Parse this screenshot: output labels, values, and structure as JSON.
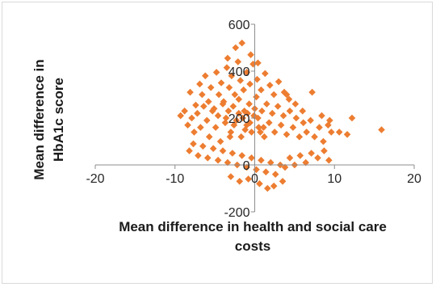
{
  "chart_data": {
    "type": "scatter",
    "title": "",
    "xlabel_lines": [
      "Mean difference in health and social care",
      "costs"
    ],
    "ylabel_lines": [
      "Mean difference in",
      "HbA1c score"
    ],
    "xlim": [
      -20,
      20
    ],
    "ylim": [
      -200,
      600
    ],
    "xticks": [
      -20,
      -10,
      0,
      10,
      20
    ],
    "yticks": [
      -200,
      0,
      200,
      400,
      600
    ],
    "gridlines": false,
    "marker": "diamond",
    "color": "#ed7d31",
    "points": [
      {
        "x": -8.1,
        "y": 310
      },
      {
        "x": -7.4,
        "y": 255
      },
      {
        "x": -6.9,
        "y": 345
      },
      {
        "x": -6.6,
        "y": 300
      },
      {
        "x": -6.2,
        "y": 380
      },
      {
        "x": -5.8,
        "y": 270
      },
      {
        "x": -5.5,
        "y": 330
      },
      {
        "x": -5.1,
        "y": 240
      },
      {
        "x": -4.8,
        "y": 395
      },
      {
        "x": -4.5,
        "y": 300
      },
      {
        "x": -4.2,
        "y": 350
      },
      {
        "x": -3.9,
        "y": 270
      },
      {
        "x": -3.5,
        "y": 415
      },
      {
        "x": -3.2,
        "y": 330
      },
      {
        "x": -2.9,
        "y": 380
      },
      {
        "x": -2.5,
        "y": 300
      },
      {
        "x": -2.1,
        "y": 440
      },
      {
        "x": -1.8,
        "y": 360
      },
      {
        "x": -1.4,
        "y": 320
      },
      {
        "x": -1.0,
        "y": 395
      },
      {
        "x": -0.6,
        "y": 345
      },
      {
        "x": -0.2,
        "y": 430
      },
      {
        "x": 0.3,
        "y": 365
      },
      {
        "x": 0.8,
        "y": 320
      },
      {
        "x": 1.3,
        "y": 390
      },
      {
        "x": 1.9,
        "y": 340
      },
      {
        "x": 2.4,
        "y": 300
      },
      {
        "x": 3.0,
        "y": 355
      },
      {
        "x": 3.7,
        "y": 310
      },
      {
        "x": 4.3,
        "y": 280
      },
      {
        "x": 5.1,
        "y": 260
      },
      {
        "x": 6.0,
        "y": 230
      },
      {
        "x": -9.3,
        "y": 210
      },
      {
        "x": -8.8,
        "y": 230
      },
      {
        "x": -8.4,
        "y": 170
      },
      {
        "x": -7.9,
        "y": 200
      },
      {
        "x": -7.6,
        "y": 140
      },
      {
        "x": -7.2,
        "y": 220
      },
      {
        "x": -6.8,
        "y": 160
      },
      {
        "x": -6.4,
        "y": 250
      },
      {
        "x": -6.0,
        "y": 190
      },
      {
        "x": -5.7,
        "y": 120
      },
      {
        "x": -5.3,
        "y": 230
      },
      {
        "x": -4.9,
        "y": 160
      },
      {
        "x": -4.6,
        "y": 210
      },
      {
        "x": -4.3,
        "y": 100
      },
      {
        "x": -4.0,
        "y": 260
      },
      {
        "x": -3.7,
        "y": 180
      },
      {
        "x": -3.3,
        "y": 230
      },
      {
        "x": -3.0,
        "y": 140
      },
      {
        "x": -2.7,
        "y": 250
      },
      {
        "x": -2.3,
        "y": 190
      },
      {
        "x": -2.0,
        "y": 280
      },
      {
        "x": -1.7,
        "y": 120
      },
      {
        "x": -1.3,
        "y": 230
      },
      {
        "x": -1.0,
        "y": 170
      },
      {
        "x": -0.7,
        "y": 260
      },
      {
        "x": -0.4,
        "y": 140
      },
      {
        "x": -0.1,
        "y": 210
      },
      {
        "x": 0.2,
        "y": 290
      },
      {
        "x": 0.5,
        "y": 160
      },
      {
        "x": 0.9,
        "y": 230
      },
      {
        "x": 1.2,
        "y": 120
      },
      {
        "x": 1.5,
        "y": 260
      },
      {
        "x": 1.8,
        "y": 180
      },
      {
        "x": 2.2,
        "y": 220
      },
      {
        "x": 2.5,
        "y": 140
      },
      {
        "x": 2.9,
        "y": 250
      },
      {
        "x": 3.3,
        "y": 170
      },
      {
        "x": 3.6,
        "y": 210
      },
      {
        "x": 4.0,
        "y": 130
      },
      {
        "x": 4.4,
        "y": 230
      },
      {
        "x": 4.8,
        "y": 160
      },
      {
        "x": 5.2,
        "y": 200
      },
      {
        "x": 5.6,
        "y": 120
      },
      {
        "x": 6.1,
        "y": 180
      },
      {
        "x": 6.5,
        "y": 140
      },
      {
        "x": 7.0,
        "y": 190
      },
      {
        "x": 7.5,
        "y": 120
      },
      {
        "x": 8.1,
        "y": 160
      },
      {
        "x": 8.6,
        "y": 100
      },
      {
        "x": 9.2,
        "y": 170
      },
      {
        "x": 9.4,
        "y": 190
      },
      {
        "x": 9.6,
        "y": 140
      },
      {
        "x": -8.2,
        "y": 60
      },
      {
        "x": -7.7,
        "y": 90
      },
      {
        "x": -7.1,
        "y": 40
      },
      {
        "x": -6.5,
        "y": 80
      },
      {
        "x": -5.9,
        "y": 30
      },
      {
        "x": -5.2,
        "y": 70
      },
      {
        "x": -4.6,
        "y": 20
      },
      {
        "x": -4.0,
        "y": 60
      },
      {
        "x": -3.4,
        "y": 10
      },
      {
        "x": -2.8,
        "y": 50
      },
      {
        "x": -2.2,
        "y": 0
      },
      {
        "x": -1.6,
        "y": 40
      },
      {
        "x": -1.0,
        "y": -10
      },
      {
        "x": -0.4,
        "y": 30
      },
      {
        "x": 0.2,
        "y": -20
      },
      {
        "x": 0.8,
        "y": 20
      },
      {
        "x": 1.4,
        "y": -30
      },
      {
        "x": 2.0,
        "y": 10
      },
      {
        "x": 2.6,
        "y": -40
      },
      {
        "x": 3.2,
        "y": 0
      },
      {
        "x": 3.8,
        "y": -10
      },
      {
        "x": 4.4,
        "y": 30
      },
      {
        "x": 5.0,
        "y": 0
      },
      {
        "x": 5.7,
        "y": 40
      },
      {
        "x": 6.4,
        "y": 10
      },
      {
        "x": 7.1,
        "y": 50
      },
      {
        "x": 7.9,
        "y": 30
      },
      {
        "x": 8.7,
        "y": 60
      },
      {
        "x": 9.3,
        "y": 20
      },
      {
        "x": -3.0,
        "y": -50
      },
      {
        "x": -1.9,
        "y": -70
      },
      {
        "x": -0.8,
        "y": -60
      },
      {
        "x": 0.6,
        "y": -80
      },
      {
        "x": 1.6,
        "y": -100
      },
      {
        "x": 2.4,
        "y": -90
      },
      {
        "x": 3.5,
        "y": -70
      },
      {
        "x": -2.4,
        "y": 500
      },
      {
        "x": -1.6,
        "y": 520
      },
      {
        "x": -0.5,
        "y": 470
      },
      {
        "x": 0.4,
        "y": 435
      },
      {
        "x": -3.4,
        "y": 455
      },
      {
        "x": 4.0,
        "y": 300
      },
      {
        "x": 7.2,
        "y": 310
      },
      {
        "x": 12.2,
        "y": 200
      },
      {
        "x": 15.9,
        "y": 150
      },
      {
        "x": 11.6,
        "y": 130
      },
      {
        "x": 10.6,
        "y": 140
      },
      {
        "x": 8.4,
        "y": 210
      },
      {
        "x": -3.6,
        "y": 200
      },
      {
        "x": -2.6,
        "y": 170
      },
      {
        "x": -1.5,
        "y": 200
      },
      {
        "x": -0.6,
        "y": 180
      },
      {
        "x": 0.4,
        "y": 200
      },
      {
        "x": 1.1,
        "y": 160
      },
      {
        "x": -1.2,
        "y": 150
      },
      {
        "x": -2.0,
        "y": 220
      },
      {
        "x": 0.0,
        "y": 240
      },
      {
        "x": -0.9,
        "y": 220
      },
      {
        "x": 0.7,
        "y": 140
      },
      {
        "x": -3.1,
        "y": 120
      }
    ]
  }
}
